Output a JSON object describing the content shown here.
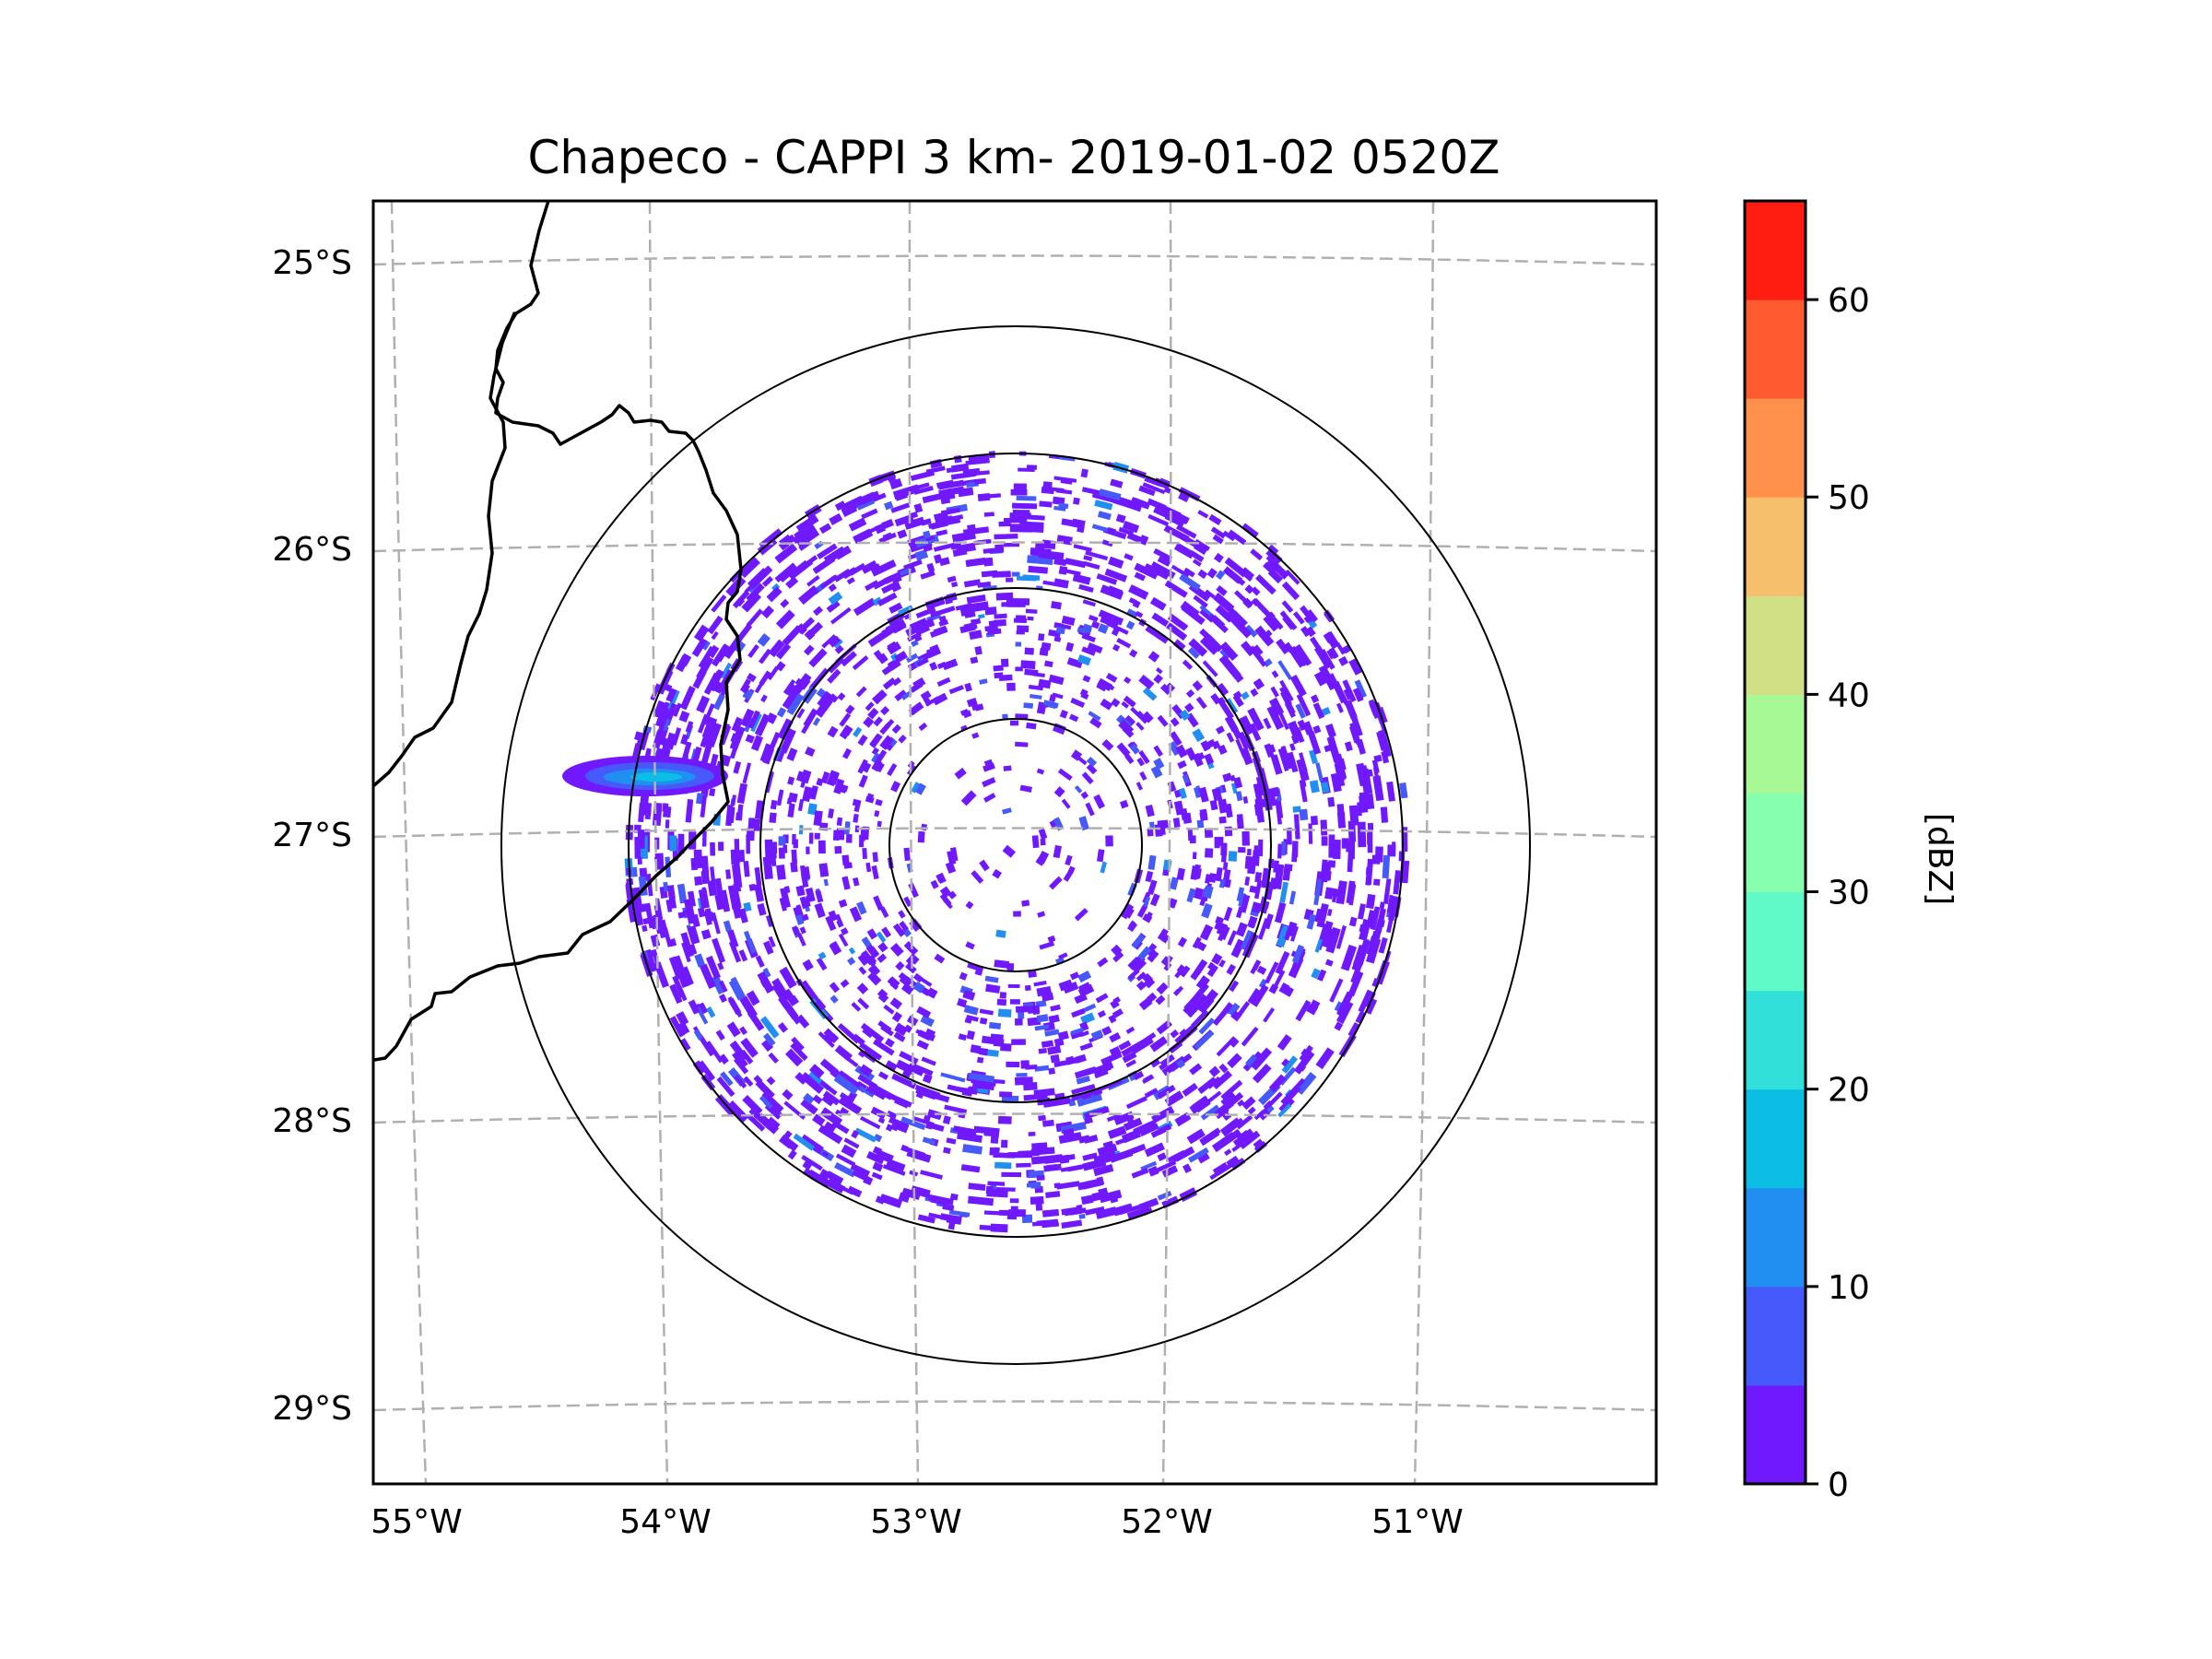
{
  "chart_data": {
    "type": "heatmap",
    "subtype": "radar-ppi-map",
    "title": "Chapeco - CAPPI 3 km- 2019-01-02 0520Z",
    "radar_name": "Chapeco",
    "product": "CAPPI 3 km",
    "datetime": "2019-01-02 0520Z",
    "radar_center": {
      "lon": -52.6,
      "lat": -27.02
    },
    "range_rings_km": [
      50,
      100,
      150,
      200
    ],
    "lon_ticks": [
      "55°W",
      "54°W",
      "53°W",
      "52°W",
      "51°W"
    ],
    "lon_values": [
      -55,
      -54,
      -53,
      -52,
      -51
    ],
    "lat_ticks": [
      "25°S",
      "26°S",
      "27°S",
      "28°S",
      "29°S"
    ],
    "lat_values": [
      -25,
      -26,
      -27,
      -28,
      -29
    ],
    "extent": {
      "lon_min": -55.17,
      "lon_max": -50.09,
      "lat_min": -29.28,
      "lat_max": -24.78
    },
    "grid": true,
    "colorbar": {
      "label": "[dBZ]",
      "placement": "right",
      "min": 0,
      "max": 65,
      "step": 5,
      "ticks": [
        "0",
        "10",
        "20",
        "30",
        "40",
        "50",
        "60"
      ],
      "tick_values": [
        0,
        10,
        20,
        30,
        40,
        50,
        60
      ],
      "levels": [
        {
          "from": 0,
          "to": 5,
          "color": "#7019ff"
        },
        {
          "from": 5,
          "to": 10,
          "color": "#4659fb"
        },
        {
          "from": 10,
          "to": 15,
          "color": "#208ff1"
        },
        {
          "from": 15,
          "to": 20,
          "color": "#0cbde6"
        },
        {
          "from": 20,
          "to": 25,
          "color": "#31e1d9"
        },
        {
          "from": 25,
          "to": 30,
          "color": "#5ffac7"
        },
        {
          "from": 30,
          "to": 35,
          "color": "#86ffae"
        },
        {
          "from": 35,
          "to": 40,
          "color": "#a6f995"
        },
        {
          "from": 40,
          "to": 45,
          "color": "#d1df85"
        },
        {
          "from": 45,
          "to": 50,
          "color": "#f5bf6b"
        },
        {
          "from": 50,
          "to": 55,
          "color": "#ff914d"
        },
        {
          "from": 55,
          "to": 60,
          "color": "#ff5b30"
        },
        {
          "from": 60,
          "to": 65,
          "color": "#ff1d12"
        }
      ]
    },
    "echo_features": [
      {
        "name": "widespread weak clutter echoes",
        "dbz_range": [
          0,
          10
        ],
        "region": "annulus 50-150 km, denser to N and SE"
      },
      {
        "name": "elongated echo band",
        "lon": -54.15,
        "lat": -26.8,
        "dbz_range": [
          0,
          20
        ],
        "region": "west, near border"
      }
    ],
    "borders": [
      "country/state borders (black)"
    ]
  }
}
